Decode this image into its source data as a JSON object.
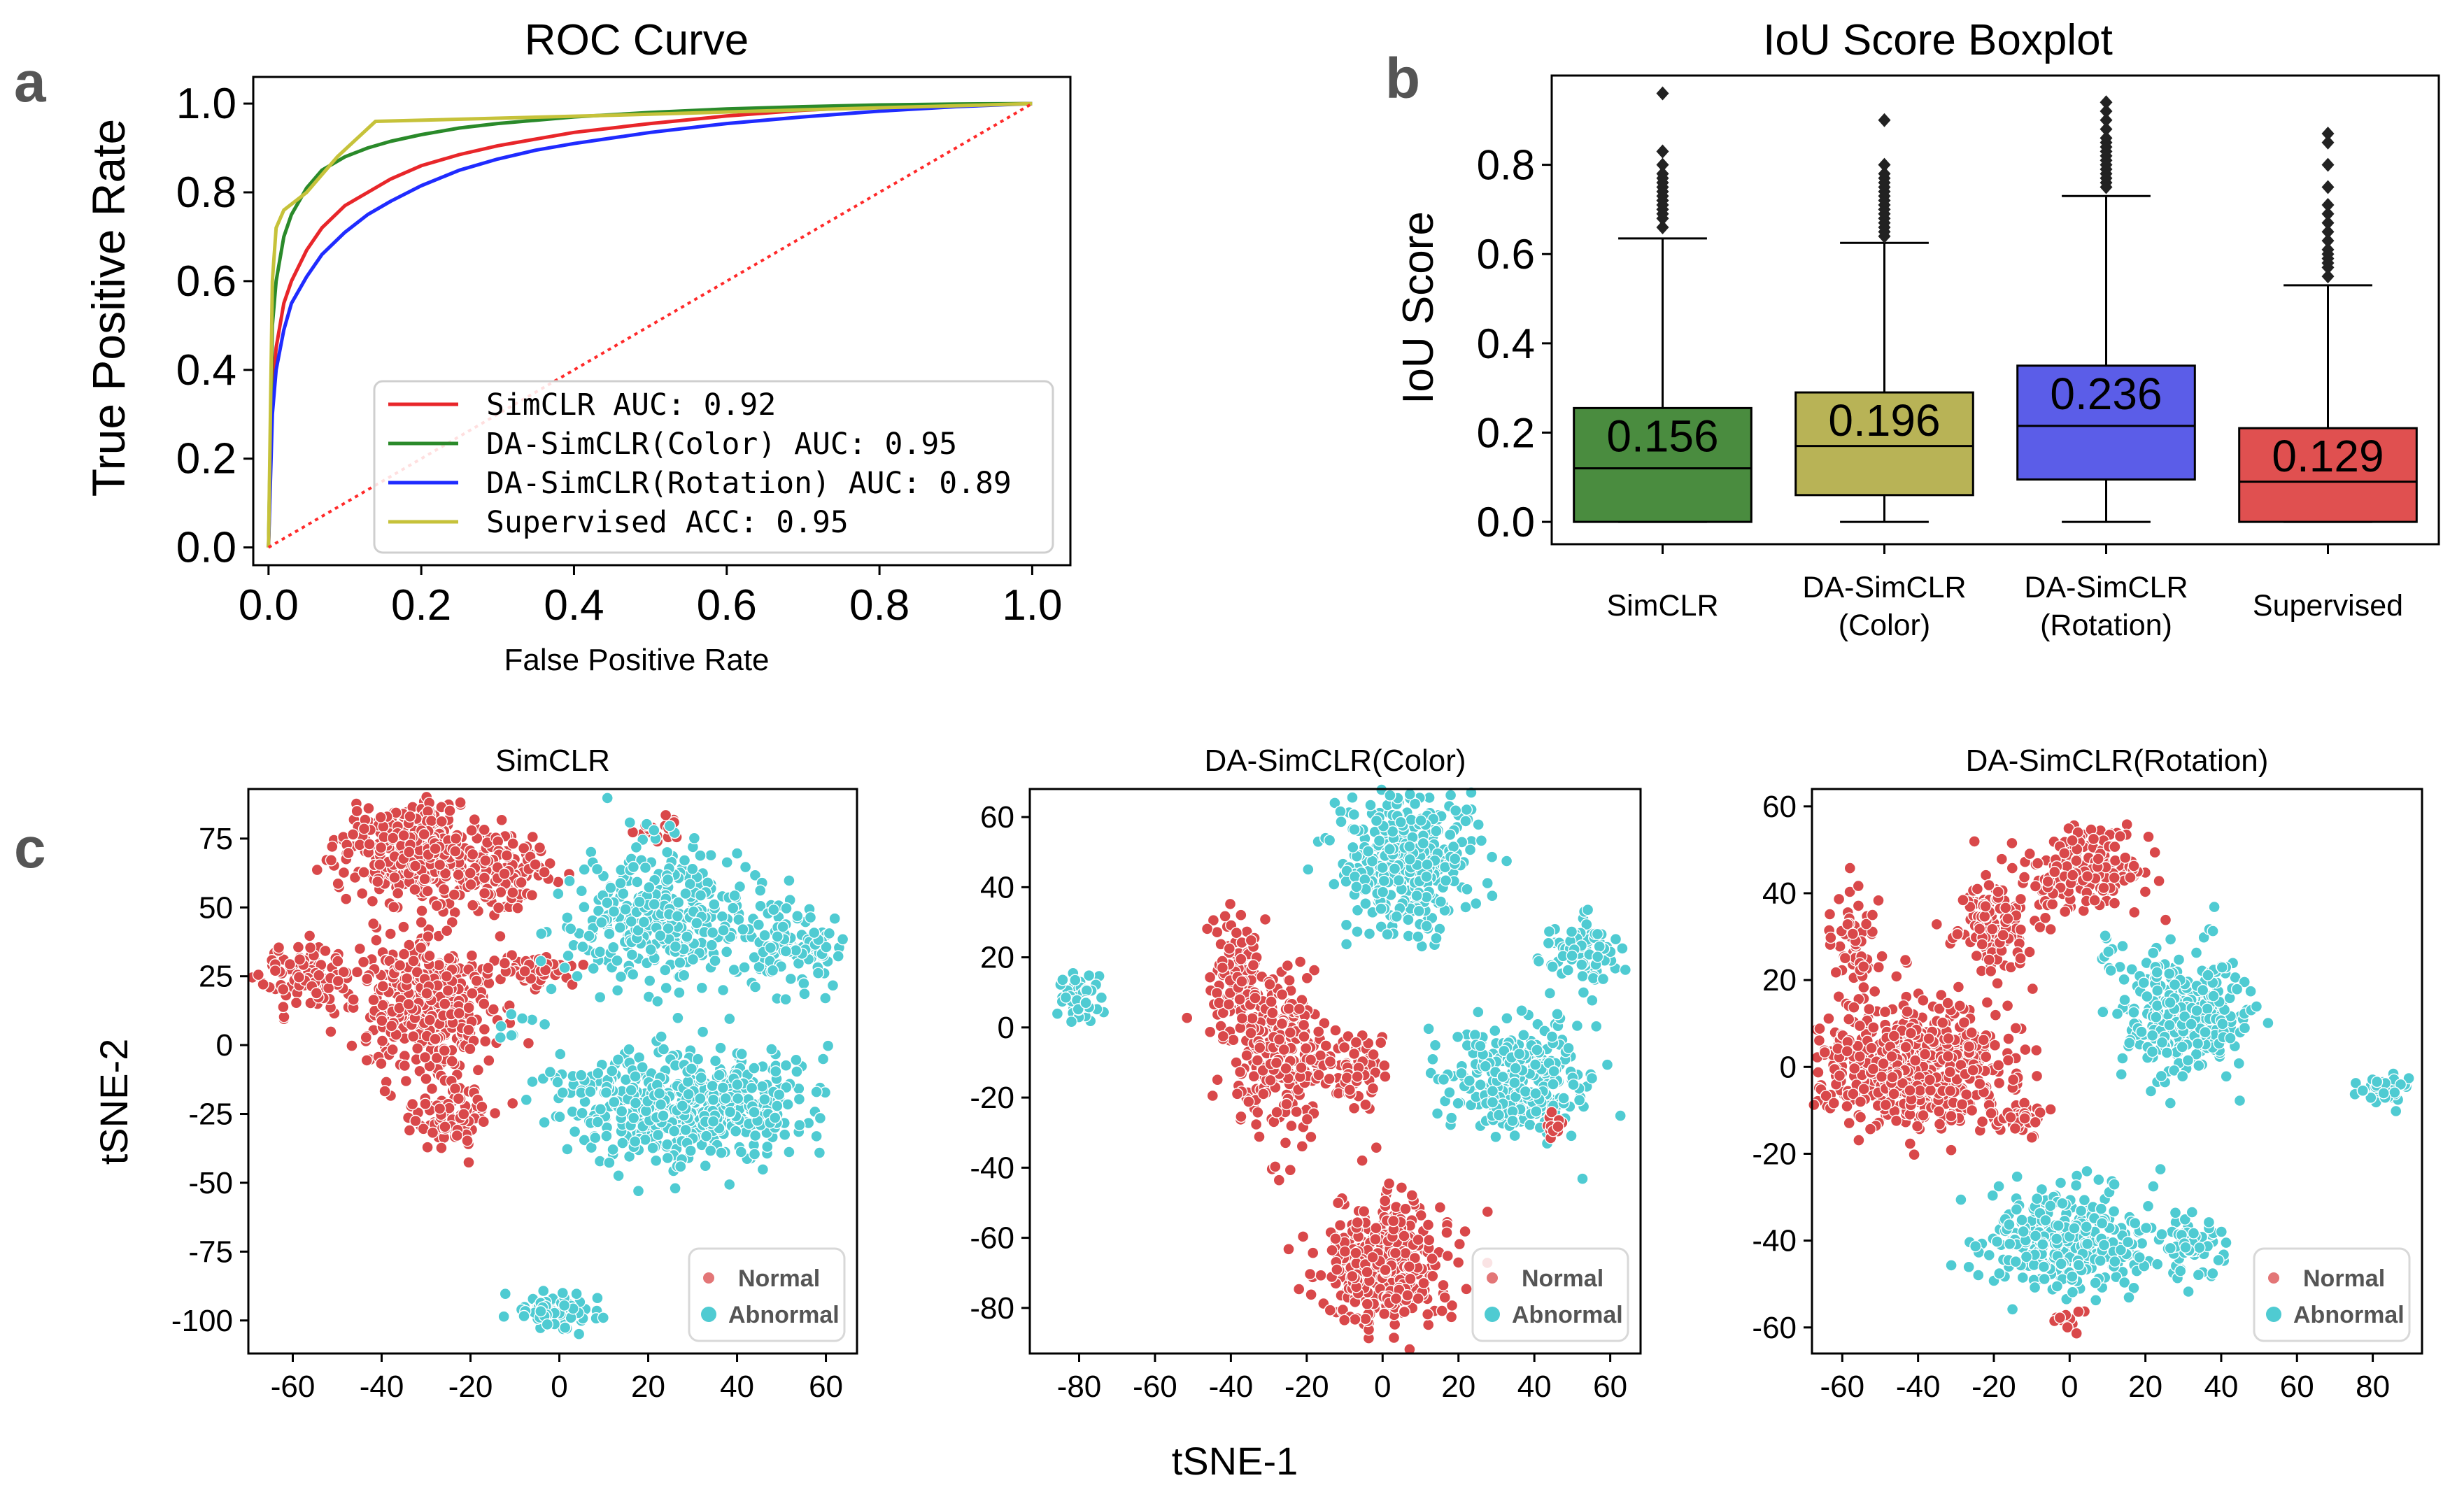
{
  "panels": {
    "a": "a",
    "b": "b",
    "c": "c"
  },
  "roc": {
    "chart_data": {
      "type": "line",
      "title": "ROC Curve",
      "xlabel": "False Positive Rate",
      "ylabel": "True Positive Rate",
      "xlim": [
        -0.02,
        1.05
      ],
      "ylim": [
        -0.04,
        1.06
      ],
      "xticks": [
        "0.0",
        "0.2",
        "0.4",
        "0.6",
        "0.8",
        "1.0"
      ],
      "yticks": [
        "0.0",
        "0.2",
        "0.4",
        "0.6",
        "0.8",
        "1.0"
      ],
      "legend_position": "lower-right",
      "series": [
        {
          "name": "SimCLR AUC: 0.92",
          "color": "#e8262a",
          "x": [
            0,
            0.005,
            0.01,
            0.02,
            0.03,
            0.05,
            0.07,
            0.1,
            0.13,
            0.16,
            0.2,
            0.25,
            0.3,
            0.35,
            0.4,
            0.5,
            0.6,
            0.7,
            0.8,
            0.9,
            1.0
          ],
          "y": [
            0,
            0.35,
            0.45,
            0.55,
            0.6,
            0.67,
            0.72,
            0.77,
            0.8,
            0.83,
            0.86,
            0.885,
            0.905,
            0.92,
            0.935,
            0.955,
            0.972,
            0.985,
            0.993,
            0.998,
            1.0
          ]
        },
        {
          "name": "DA-SimCLR(Color) AUC: 0.95",
          "color": "#2a8a2a",
          "x": [
            0,
            0.005,
            0.01,
            0.02,
            0.03,
            0.05,
            0.07,
            0.1,
            0.13,
            0.16,
            0.2,
            0.25,
            0.3,
            0.4,
            0.5,
            0.6,
            0.7,
            0.8,
            0.9,
            1.0
          ],
          "y": [
            0,
            0.5,
            0.6,
            0.7,
            0.75,
            0.81,
            0.85,
            0.88,
            0.9,
            0.915,
            0.93,
            0.945,
            0.955,
            0.97,
            0.98,
            0.988,
            0.993,
            0.997,
            0.999,
            1.0
          ]
        },
        {
          "name": "DA-SimCLR(Rotation) AUC: 0.89",
          "color": "#1f2bff",
          "x": [
            0,
            0.005,
            0.01,
            0.02,
            0.03,
            0.05,
            0.07,
            0.1,
            0.13,
            0.16,
            0.2,
            0.25,
            0.3,
            0.35,
            0.4,
            0.5,
            0.6,
            0.7,
            0.8,
            0.9,
            1.0
          ],
          "y": [
            0,
            0.3,
            0.4,
            0.49,
            0.55,
            0.61,
            0.66,
            0.71,
            0.75,
            0.78,
            0.815,
            0.85,
            0.875,
            0.895,
            0.91,
            0.935,
            0.955,
            0.97,
            0.983,
            0.993,
            1.0
          ]
        },
        {
          "name": "Supervised ACC: 0.95",
          "color": "#c6c23a",
          "x": [
            0,
            0.005,
            0.01,
            0.02,
            0.05,
            0.09,
            0.14,
            0.3,
            0.5,
            0.7,
            0.9,
            1.0
          ],
          "y": [
            0,
            0.6,
            0.72,
            0.76,
            0.8,
            0.88,
            0.96,
            0.967,
            0.976,
            0.986,
            0.995,
            1.0
          ]
        },
        {
          "name": "",
          "color": "#ff2a2a",
          "dashed": true,
          "x": [
            0,
            1.0
          ],
          "y": [
            0,
            1.0
          ]
        }
      ]
    }
  },
  "iou": {
    "chart_data": {
      "type": "box",
      "title": "IoU Score Boxplot",
      "xlabel": "",
      "ylabel": "IoU Score",
      "ylim": [
        -0.05,
        1.0
      ],
      "yticks": [
        "0.0",
        "0.2",
        "0.4",
        "0.6",
        "0.8"
      ],
      "categories": [
        "SimCLR",
        "DA-SimCLR\n(Color)",
        "DA-SimCLR\n(Rotation)",
        "Supervised"
      ],
      "boxes": [
        {
          "color": "#4a8c3f",
          "whislo": 0.0,
          "q1": 0.0,
          "med": 0.12,
          "q3": 0.255,
          "whishi": 0.635,
          "mean_label": "0.156",
          "fliers": [
            0.66,
            0.68,
            0.69,
            0.7,
            0.71,
            0.72,
            0.73,
            0.74,
            0.75,
            0.76,
            0.77,
            0.78,
            0.8,
            0.83,
            0.96
          ]
        },
        {
          "color": "#b8b356",
          "whislo": 0.0,
          "q1": 0.06,
          "med": 0.17,
          "q3": 0.29,
          "whishi": 0.625,
          "mean_label": "0.196",
          "fliers": [
            0.64,
            0.65,
            0.66,
            0.67,
            0.68,
            0.69,
            0.7,
            0.71,
            0.72,
            0.73,
            0.74,
            0.75,
            0.76,
            0.77,
            0.78,
            0.8,
            0.9
          ]
        },
        {
          "color": "#5b5de8",
          "whislo": 0.0,
          "q1": 0.095,
          "med": 0.215,
          "q3": 0.35,
          "whishi": 0.73,
          "mean_label": "0.236",
          "fliers": [
            0.75,
            0.76,
            0.77,
            0.78,
            0.79,
            0.8,
            0.81,
            0.82,
            0.83,
            0.84,
            0.85,
            0.86,
            0.88,
            0.9,
            0.92,
            0.94
          ]
        },
        {
          "color": "#e05050",
          "whislo": 0.0,
          "q1": 0.0,
          "med": 0.09,
          "q3": 0.21,
          "whishi": 0.53,
          "mean_label": "0.129",
          "fliers": [
            0.55,
            0.57,
            0.58,
            0.59,
            0.6,
            0.61,
            0.63,
            0.65,
            0.67,
            0.69,
            0.71,
            0.75,
            0.8,
            0.85,
            0.87
          ]
        }
      ]
    }
  },
  "tsne": {
    "xlabel": "tSNE-1",
    "ylabel": "tSNE-2",
    "chart_data": [
      {
        "type": "scatter",
        "title": "SimCLR",
        "xlim": [
          -70,
          67
        ],
        "ylim": [
          -112,
          93
        ],
        "xticks": [
          -60,
          -40,
          -20,
          0,
          20,
          40,
          60
        ],
        "yticks": [
          75,
          50,
          25,
          0,
          -25,
          -50,
          -75,
          -100
        ],
        "legend": [
          "Normal",
          "Abnormal"
        ],
        "normal_color": "#d9484a",
        "abnormal_color": "#4fcbd2",
        "clusters": [
          {
            "cls": "normal",
            "cx": -30,
            "cy": 70,
            "sx": 9,
            "sy": 9,
            "n": 420
          },
          {
            "cls": "normal",
            "cx": -12,
            "cy": 62,
            "sx": 6,
            "sy": 6,
            "n": 90
          },
          {
            "cls": "normal",
            "cx": -30,
            "cy": 15,
            "sx": 8,
            "sy": 13,
            "n": 380
          },
          {
            "cls": "normal",
            "cx": -25,
            "cy": -25,
            "sx": 5,
            "sy": 7,
            "n": 90
          },
          {
            "cls": "normal",
            "cx": -57,
            "cy": 25,
            "sx": 5,
            "sy": 6,
            "n": 90
          },
          {
            "cls": "normal",
            "cx": -5,
            "cy": 27,
            "sx": 4,
            "sy": 2.5,
            "n": 60
          },
          {
            "cls": "normal",
            "cx": 22,
            "cy": 78,
            "sx": 3,
            "sy": 3,
            "n": 18
          },
          {
            "cls": "abnormal",
            "cx": 22,
            "cy": 47,
            "sx": 10,
            "sy": 13,
            "n": 340
          },
          {
            "cls": "abnormal",
            "cx": 52,
            "cy": 35,
            "sx": 6,
            "sy": 8,
            "n": 110
          },
          {
            "cls": "abnormal",
            "cx": 28,
            "cy": -22,
            "sx": 13,
            "sy": 10,
            "n": 560
          },
          {
            "cls": "abnormal",
            "cx": -1,
            "cy": -97,
            "sx": 4,
            "sy": 3,
            "n": 80
          },
          {
            "cls": "abnormal",
            "cx": -10,
            "cy": 8,
            "sx": 3,
            "sy": 3,
            "n": 8
          }
        ]
      },
      {
        "type": "scatter",
        "title": "DA-SimCLR(Color)",
        "xlim": [
          -93,
          68
        ],
        "ylim": [
          -93,
          68
        ],
        "xticks": [
          -80,
          -60,
          -40,
          -20,
          0,
          20,
          40,
          60
        ],
        "yticks": [
          60,
          40,
          20,
          0,
          -20,
          -40,
          -60,
          -80
        ],
        "legend": [
          "Normal",
          "Abnormal"
        ],
        "normal_color": "#d9484a",
        "abnormal_color": "#4fcbd2",
        "clusters": [
          {
            "cls": "abnormal",
            "cx": 5,
            "cy": 48,
            "sx": 9,
            "sy": 10,
            "n": 360
          },
          {
            "cls": "abnormal",
            "cx": -80,
            "cy": 8,
            "sx": 2.5,
            "sy": 4,
            "n": 50
          },
          {
            "cls": "abnormal",
            "cx": 35,
            "cy": -15,
            "sx": 9,
            "sy": 8,
            "n": 300
          },
          {
            "cls": "abnormal",
            "cx": 52,
            "cy": 22,
            "sx": 5,
            "sy": 5,
            "n": 90
          },
          {
            "cls": "normal",
            "cx": -38,
            "cy": 15,
            "sx": 4,
            "sy": 8,
            "n": 110
          },
          {
            "cls": "normal",
            "cx": -28,
            "cy": -8,
            "sx": 6,
            "sy": 10,
            "n": 280
          },
          {
            "cls": "normal",
            "cx": -8,
            "cy": -12,
            "sx": 5,
            "sy": 5,
            "n": 70
          },
          {
            "cls": "normal",
            "cx": 0,
            "cy": -68,
            "sx": 8,
            "sy": 9,
            "n": 420
          },
          {
            "cls": "normal",
            "cx": 45,
            "cy": -28,
            "sx": 2,
            "sy": 2,
            "n": 12
          }
        ]
      },
      {
        "type": "scatter",
        "title": "DA-SimCLR(Rotation)",
        "xlim": [
          -68,
          93
        ],
        "ylim": [
          -66,
          64
        ],
        "xticks": [
          -60,
          -40,
          -20,
          0,
          20,
          40,
          60,
          80
        ],
        "yticks": [
          60,
          40,
          20,
          0,
          -20,
          -40,
          -60
        ],
        "legend": [
          "Normal",
          "Abnormal"
        ],
        "normal_color": "#d9484a",
        "abnormal_color": "#4fcbd2",
        "clusters": [
          {
            "cls": "normal",
            "cx": -42,
            "cy": 0,
            "sx": 13,
            "sy": 7,
            "n": 620
          },
          {
            "cls": "normal",
            "cx": -56,
            "cy": 28,
            "sx": 3,
            "sy": 8,
            "n": 60
          },
          {
            "cls": "normal",
            "cx": -20,
            "cy": 33,
            "sx": 6,
            "sy": 6,
            "n": 140
          },
          {
            "cls": "normal",
            "cx": 5,
            "cy": 45,
            "sx": 8,
            "sy": 5,
            "n": 160
          },
          {
            "cls": "normal",
            "cx": -12,
            "cy": -12,
            "sx": 3,
            "sy": 2,
            "n": 30
          },
          {
            "cls": "normal",
            "cx": -1,
            "cy": -58,
            "sx": 2,
            "sy": 2,
            "n": 12
          },
          {
            "cls": "abnormal",
            "cx": 30,
            "cy": 12,
            "sx": 8,
            "sy": 7,
            "n": 320
          },
          {
            "cls": "abnormal",
            "cx": 0,
            "cy": -40,
            "sx": 11,
            "sy": 6,
            "n": 330
          },
          {
            "cls": "abnormal",
            "cx": 32,
            "cy": -42,
            "sx": 4,
            "sy": 4,
            "n": 60
          },
          {
            "cls": "abnormal",
            "cx": 83,
            "cy": -5,
            "sx": 3,
            "sy": 2,
            "n": 45
          },
          {
            "cls": "abnormal",
            "cx": 10,
            "cy": 25,
            "sx": 2,
            "sy": 2,
            "n": 10
          }
        ]
      }
    ]
  }
}
